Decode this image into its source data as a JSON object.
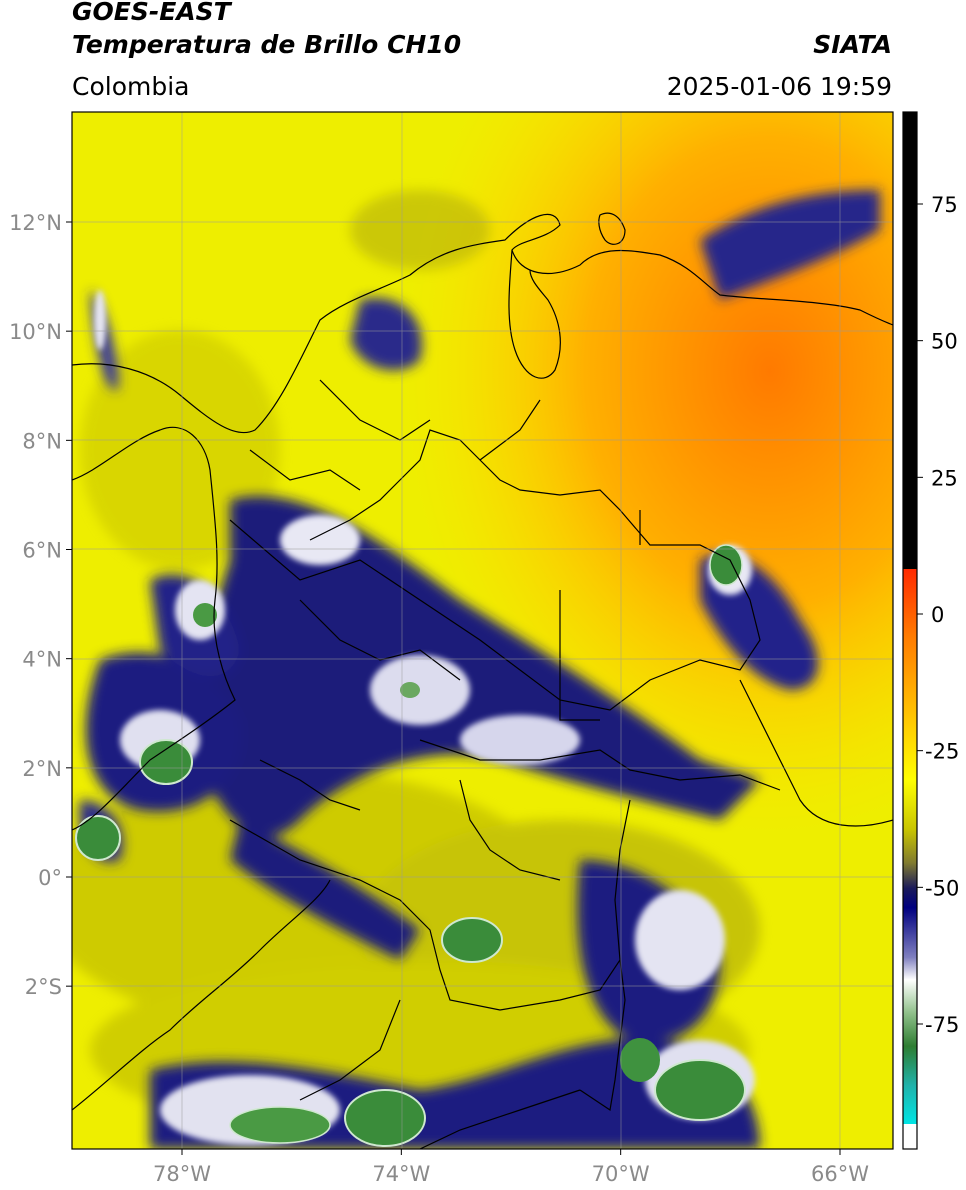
{
  "header": {
    "title_line1": "GOES-EAST",
    "title_line2": "Temperatura de Brillo CH10",
    "region": "Colombia",
    "source": "SIATA",
    "datetime": "2025-01-06 19:59"
  },
  "map": {
    "lon_ticks": [
      {
        "lon": -78,
        "label": "78°W"
      },
      {
        "lon": -74,
        "label": "74°W"
      },
      {
        "lon": -70,
        "label": "70°W"
      },
      {
        "lon": -66,
        "label": "66°W"
      }
    ],
    "lat_ticks": [
      {
        "lat": 12,
        "label": "12°N"
      },
      {
        "lat": 10,
        "label": "10°N"
      },
      {
        "lat": 8,
        "label": "8°N"
      },
      {
        "lat": 6,
        "label": "6°N"
      },
      {
        "lat": 4,
        "label": "4°N"
      },
      {
        "lat": 2,
        "label": "2°N"
      },
      {
        "lat": 0,
        "label": "0°"
      },
      {
        "lat": -2,
        "label": "2°S"
      }
    ]
  },
  "colorbar": {
    "ticks": [
      {
        "value": 75,
        "label": "75"
      },
      {
        "value": 50,
        "label": "50"
      },
      {
        "value": 25,
        "label": "25"
      },
      {
        "value": 0,
        "label": "0"
      },
      {
        "value": -25,
        "label": "-25"
      },
      {
        "value": -50,
        "label": "-50"
      },
      {
        "value": -75,
        "label": "-75"
      }
    ],
    "colors": {
      "black": "#000000",
      "red": "#ff0000",
      "orange": "#ff9900",
      "yellow": "#ffff00",
      "olive": "#8c8c1e",
      "navy": "#000080",
      "white": "#ffffff",
      "green": "#2e7d32",
      "teal": "#20b2aa",
      "cyan": "#00e5e5"
    }
  }
}
